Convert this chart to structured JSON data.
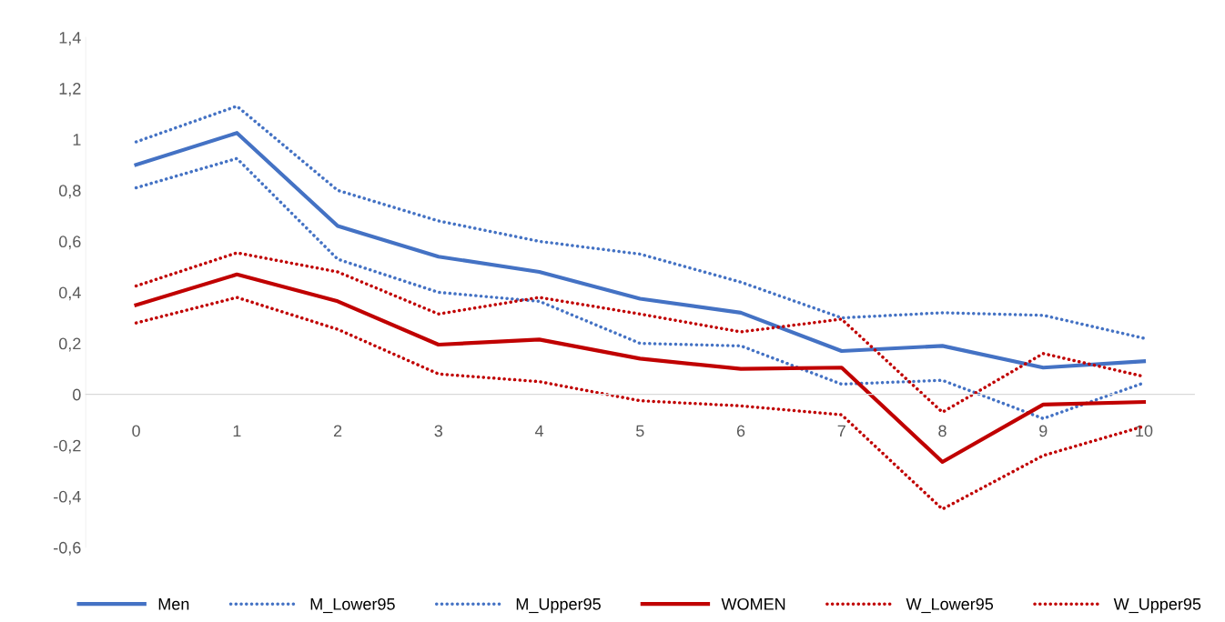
{
  "chart_data": {
    "type": "line",
    "categories": [
      "0",
      "1",
      "2",
      "3",
      "4",
      "5",
      "6",
      "7",
      "8",
      "9",
      "10"
    ],
    "series": [
      {
        "name": "Men",
        "color": "#4472c4",
        "line_style": "solid",
        "values": [
          0.9,
          1.025,
          0.66,
          0.54,
          0.48,
          0.375,
          0.32,
          0.17,
          0.19,
          0.105,
          0.13
        ]
      },
      {
        "name": "M_Lower95",
        "color": "#4472c4",
        "line_style": "dotted",
        "values": [
          0.81,
          0.925,
          0.53,
          0.4,
          0.365,
          0.2,
          0.19,
          0.04,
          0.055,
          -0.095,
          0.045
        ]
      },
      {
        "name": "M_Upper95",
        "color": "#4472c4",
        "line_style": "dotted",
        "values": [
          0.99,
          1.13,
          0.8,
          0.68,
          0.6,
          0.55,
          0.44,
          0.3,
          0.32,
          0.31,
          0.22
        ]
      },
      {
        "name": "WOMEN",
        "color": "#c00000",
        "line_style": "solid",
        "values": [
          0.35,
          0.47,
          0.365,
          0.195,
          0.215,
          0.14,
          0.1,
          0.105,
          -0.265,
          -0.04,
          -0.03
        ]
      },
      {
        "name": "W_Lower95",
        "color": "#c00000",
        "line_style": "dotted",
        "values": [
          0.28,
          0.38,
          0.255,
          0.08,
          0.05,
          -0.025,
          -0.045,
          -0.08,
          -0.45,
          -0.24,
          -0.125
        ]
      },
      {
        "name": "W_Upper95",
        "color": "#c00000",
        "line_style": "dotted",
        "values": [
          0.425,
          0.555,
          0.48,
          0.315,
          0.38,
          0.315,
          0.245,
          0.295,
          -0.07,
          0.16,
          0.07
        ]
      }
    ],
    "ylim": [
      -0.6,
      1.4
    ],
    "yticks": [
      {
        "value": -0.6,
        "label": "-0,6"
      },
      {
        "value": -0.4,
        "label": "-0,4"
      },
      {
        "value": -0.2,
        "label": "-0,2"
      },
      {
        "value": 0,
        "label": "0"
      },
      {
        "value": 0.2,
        "label": "0,2"
      },
      {
        "value": 0.4,
        "label": "0,4"
      },
      {
        "value": 0.6,
        "label": "0,6"
      },
      {
        "value": 0.8,
        "label": "0,8"
      },
      {
        "value": 1,
        "label": "1"
      },
      {
        "value": 1.2,
        "label": "1,2"
      },
      {
        "value": 1.4,
        "label": "1,4"
      }
    ],
    "grid": false,
    "legend": "bottom",
    "marker": "none"
  }
}
